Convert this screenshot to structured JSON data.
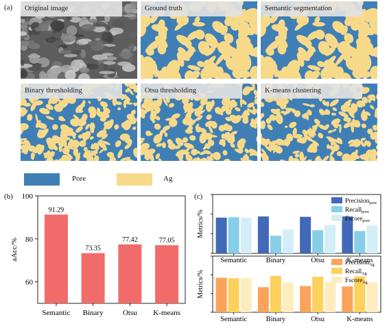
{
  "panels": {
    "a": "(a)",
    "b": "(b)",
    "c": "(c)"
  },
  "tiles": [
    {
      "label": "Original image",
      "kind": "sem"
    },
    {
      "label": "Ground truth",
      "kind": "gt"
    },
    {
      "label": "Semantic segmentation",
      "kind": "sem"
    },
    {
      "label": "Binary thresholding",
      "kind": "bin"
    },
    {
      "label": "Otsu thresholding",
      "kind": "otsu"
    },
    {
      "label": "K-means clustering",
      "kind": "km"
    }
  ],
  "legend": {
    "pore": {
      "label": "Pore",
      "color": "#3f7fb5"
    },
    "ag": {
      "label": "Ag",
      "color": "#f7d98a"
    }
  },
  "chart_data": [
    {
      "type": "bar",
      "categories": [
        "Semantic",
        "Binary",
        "Otsu",
        "K-means"
      ],
      "values": [
        91.29,
        73.35,
        77.42,
        77.05
      ],
      "value_labels": [
        "91.29",
        "73.35",
        "77.42",
        "77.05"
      ],
      "ylabel": "aAcc/%",
      "ylim": [
        50,
        100
      ],
      "yticks": [
        60,
        80,
        100
      ],
      "color": "#f26b6b"
    },
    {
      "type": "bar",
      "categories": [
        "Semantic",
        "Binary",
        "Otsu",
        "K-means"
      ],
      "ylabel": "Metrics/%",
      "ylim": [
        0,
        150
      ],
      "yticks": [
        0,
        50,
        100,
        150
      ],
      "legend_position": "top-right",
      "series": [
        {
          "name": "Precision",
          "sub": "pore",
          "color": "#4169b8",
          "values": [
            91,
            94,
            93,
            94
          ]
        },
        {
          "name": "Recall",
          "sub": "pore",
          "color": "#87cfe8",
          "values": [
            92,
            45,
            59,
            57
          ]
        },
        {
          "name": "Fscore",
          "sub": "pore",
          "color": "#d4eef8",
          "values": [
            91,
            61,
            72,
            71
          ]
        }
      ]
    },
    {
      "type": "bar",
      "categories": [
        "Semantic",
        "Binary",
        "Otsu",
        "K-means"
      ],
      "ylabel": "Metrics/%",
      "ylim": [
        0,
        150
      ],
      "yticks": [
        0,
        50,
        100,
        150
      ],
      "legend_position": "top-right",
      "series": [
        {
          "name": "Precision",
          "sub": "Ag",
          "color": "#fba35a",
          "values": [
            92,
            67,
            70,
            69
          ]
        },
        {
          "name": "Recall",
          "sub": "Ag",
          "color": "#fcd15c",
          "values": [
            91,
            97,
            95,
            96
          ]
        },
        {
          "name": "Fscore",
          "sub": "Ag",
          "color": "#fdecbe",
          "values": [
            91,
            79,
            81,
            80
          ]
        }
      ]
    }
  ]
}
